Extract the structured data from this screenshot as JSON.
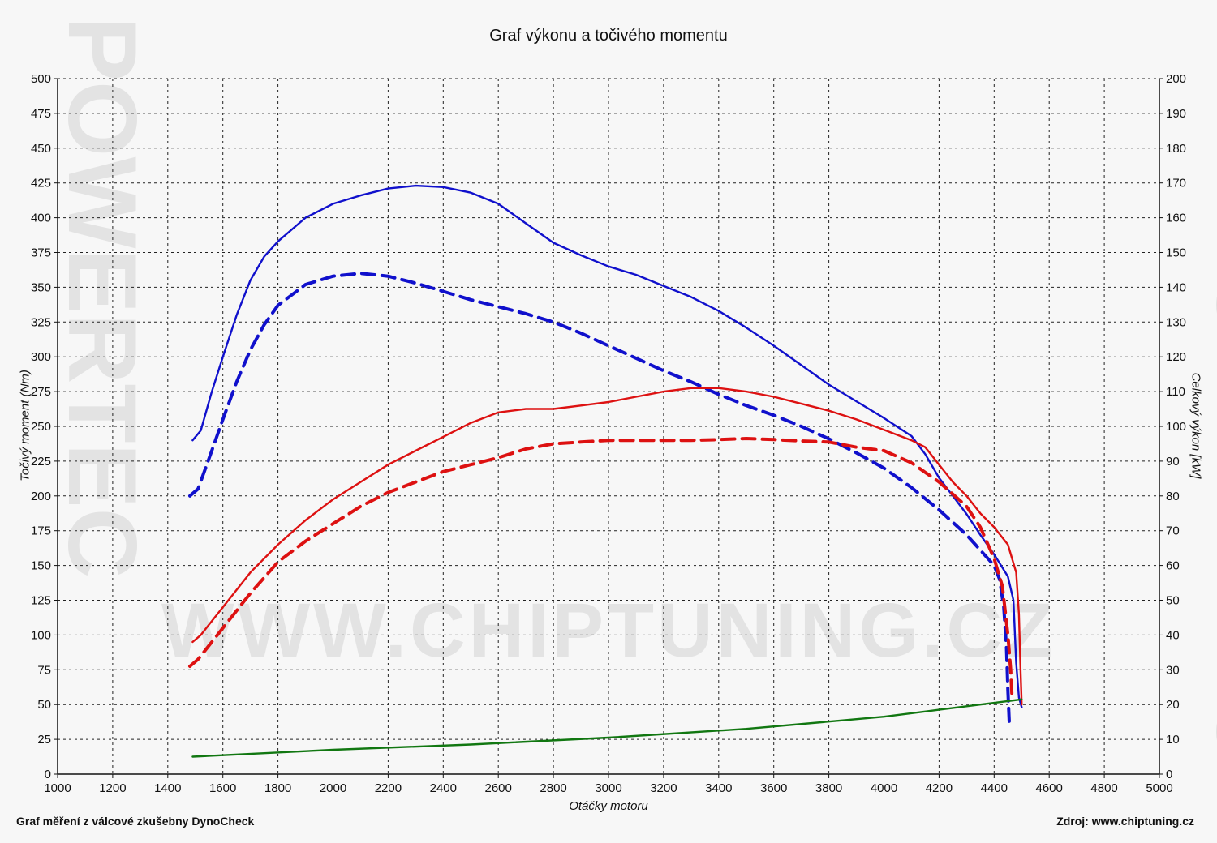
{
  "chart_data": {
    "type": "line",
    "title": "Graf výkonu a točivého momentu",
    "xlabel": "Otáčky motoru",
    "ylabel_left": "Točivý moment (Nm)",
    "ylabel_right": "Celkový výkon [kW]",
    "xlim": [
      1000,
      5000
    ],
    "ylim_left": [
      0,
      500
    ],
    "ylim_right": [
      0,
      200
    ],
    "x_ticks": [
      "1000",
      "1200",
      "1400",
      "1600",
      "1800",
      "2000",
      "2200",
      "2400",
      "2600",
      "2800",
      "3000",
      "3200",
      "3400",
      "3600",
      "3800",
      "4000",
      "4200",
      "4400",
      "4600",
      "4800",
      "5000"
    ],
    "y_left_ticks": [
      "0",
      "25",
      "50",
      "75",
      "100",
      "125",
      "150",
      "175",
      "200",
      "225",
      "250",
      "275",
      "300",
      "325",
      "350",
      "375",
      "400",
      "425",
      "450",
      "475",
      "500"
    ],
    "y_right_ticks": [
      "0",
      "10",
      "20",
      "30",
      "40",
      "50",
      "60",
      "70",
      "80",
      "90",
      "100",
      "110",
      "120",
      "130",
      "140",
      "150",
      "160",
      "170",
      "180",
      "190",
      "200"
    ],
    "grid": true,
    "series": [
      {
        "axis": "left",
        "color": "#1010cc",
        "style": "solid",
        "points": [
          [
            1490,
            240
          ],
          [
            1520,
            247
          ],
          [
            1560,
            275
          ],
          [
            1600,
            300
          ],
          [
            1650,
            330
          ],
          [
            1700,
            355
          ],
          [
            1750,
            372
          ],
          [
            1800,
            383
          ],
          [
            1900,
            400
          ],
          [
            2000,
            410
          ],
          [
            2100,
            416
          ],
          [
            2200,
            421
          ],
          [
            2300,
            423
          ],
          [
            2400,
            422
          ],
          [
            2500,
            418
          ],
          [
            2600,
            410
          ],
          [
            2700,
            396
          ],
          [
            2800,
            382
          ],
          [
            2900,
            373
          ],
          [
            3000,
            365
          ],
          [
            3100,
            359
          ],
          [
            3200,
            351
          ],
          [
            3300,
            343
          ],
          [
            3400,
            333
          ],
          [
            3500,
            321
          ],
          [
            3600,
            308
          ],
          [
            3700,
            294
          ],
          [
            3800,
            280
          ],
          [
            3900,
            268
          ],
          [
            4000,
            256
          ],
          [
            4100,
            243
          ],
          [
            4150,
            230
          ],
          [
            4200,
            213
          ],
          [
            4250,
            200
          ],
          [
            4300,
            187
          ],
          [
            4350,
            172
          ],
          [
            4400,
            158
          ],
          [
            4450,
            142
          ],
          [
            4470,
            125
          ],
          [
            4480,
            80
          ],
          [
            4490,
            55
          ],
          [
            4500,
            48
          ]
        ]
      },
      {
        "axis": "left",
        "color": "#1010cc",
        "style": "dashed",
        "points": [
          [
            1480,
            200
          ],
          [
            1510,
            205
          ],
          [
            1550,
            227
          ],
          [
            1600,
            255
          ],
          [
            1650,
            282
          ],
          [
            1700,
            305
          ],
          [
            1750,
            323
          ],
          [
            1800,
            337
          ],
          [
            1900,
            352
          ],
          [
            2000,
            358
          ],
          [
            2100,
            360
          ],
          [
            2200,
            358
          ],
          [
            2300,
            353
          ],
          [
            2400,
            347
          ],
          [
            2500,
            341
          ],
          [
            2600,
            336
          ],
          [
            2700,
            331
          ],
          [
            2800,
            325
          ],
          [
            2900,
            317
          ],
          [
            3000,
            308
          ],
          [
            3100,
            299
          ],
          [
            3200,
            290
          ],
          [
            3300,
            282
          ],
          [
            3400,
            273
          ],
          [
            3500,
            265
          ],
          [
            3600,
            258
          ],
          [
            3700,
            250
          ],
          [
            3800,
            241
          ],
          [
            3900,
            231
          ],
          [
            4000,
            220
          ],
          [
            4100,
            206
          ],
          [
            4200,
            190
          ],
          [
            4300,
            172
          ],
          [
            4350,
            161
          ],
          [
            4400,
            150
          ],
          [
            4420,
            140
          ],
          [
            4435,
            120
          ],
          [
            4445,
            90
          ],
          [
            4450,
            60
          ],
          [
            4455,
            37
          ]
        ]
      },
      {
        "axis": "right",
        "color": "#dd1111",
        "style": "solid",
        "points": [
          [
            1490,
            38
          ],
          [
            1520,
            40
          ],
          [
            1550,
            43
          ],
          [
            1600,
            48
          ],
          [
            1700,
            58
          ],
          [
            1800,
            66
          ],
          [
            1900,
            73
          ],
          [
            2000,
            79
          ],
          [
            2100,
            84
          ],
          [
            2200,
            89
          ],
          [
            2300,
            93
          ],
          [
            2400,
            97
          ],
          [
            2500,
            101
          ],
          [
            2600,
            104
          ],
          [
            2700,
            105
          ],
          [
            2800,
            105
          ],
          [
            2900,
            106
          ],
          [
            3000,
            107
          ],
          [
            3100,
            108.5
          ],
          [
            3200,
            110
          ],
          [
            3300,
            111
          ],
          [
            3400,
            111
          ],
          [
            3500,
            110
          ],
          [
            3600,
            108.5
          ],
          [
            3700,
            106.5
          ],
          [
            3800,
            104.5
          ],
          [
            3900,
            102
          ],
          [
            4000,
            99
          ],
          [
            4100,
            96
          ],
          [
            4150,
            94
          ],
          [
            4200,
            89
          ],
          [
            4250,
            84
          ],
          [
            4300,
            80
          ],
          [
            4350,
            75
          ],
          [
            4400,
            71
          ],
          [
            4450,
            66
          ],
          [
            4480,
            58
          ],
          [
            4490,
            46
          ],
          [
            4495,
            32
          ],
          [
            4500,
            20
          ]
        ]
      },
      {
        "axis": "right",
        "color": "#dd1111",
        "style": "dashed",
        "points": [
          [
            1480,
            31
          ],
          [
            1510,
            33
          ],
          [
            1550,
            37
          ],
          [
            1600,
            42
          ],
          [
            1700,
            52
          ],
          [
            1800,
            61
          ],
          [
            1900,
            67
          ],
          [
            2000,
            72
          ],
          [
            2100,
            77
          ],
          [
            2200,
            81
          ],
          [
            2300,
            84
          ],
          [
            2400,
            87
          ],
          [
            2500,
            89
          ],
          [
            2600,
            91
          ],
          [
            2700,
            93.5
          ],
          [
            2800,
            95
          ],
          [
            2900,
            95.5
          ],
          [
            3000,
            96
          ],
          [
            3100,
            96
          ],
          [
            3200,
            96
          ],
          [
            3300,
            96
          ],
          [
            3400,
            96.2
          ],
          [
            3500,
            96.5
          ],
          [
            3600,
            96.2
          ],
          [
            3700,
            95.8
          ],
          [
            3800,
            95.5
          ],
          [
            3900,
            94
          ],
          [
            4000,
            93
          ],
          [
            4100,
            89.5
          ],
          [
            4200,
            84
          ],
          [
            4300,
            77
          ],
          [
            4350,
            71
          ],
          [
            4400,
            62
          ],
          [
            4430,
            54
          ],
          [
            4450,
            40
          ],
          [
            4460,
            30
          ],
          [
            4465,
            22
          ]
        ]
      },
      {
        "axis": "right",
        "color": "#117711",
        "style": "solid",
        "points": [
          [
            1490,
            5
          ],
          [
            2000,
            7
          ],
          [
            2500,
            8.5
          ],
          [
            3000,
            10.5
          ],
          [
            3500,
            13
          ],
          [
            4000,
            16.5
          ],
          [
            4200,
            18.5
          ],
          [
            4400,
            20.5
          ],
          [
            4500,
            21.5
          ]
        ]
      }
    ]
  },
  "footer": {
    "left": "Graf měření z válcové zkušebny DynoCheck",
    "right": "Zdroj: www.chiptuning.cz"
  },
  "watermark": {
    "text": "WWW.CHIPTUNING.CZ",
    "side_text": "POWERTEC"
  }
}
